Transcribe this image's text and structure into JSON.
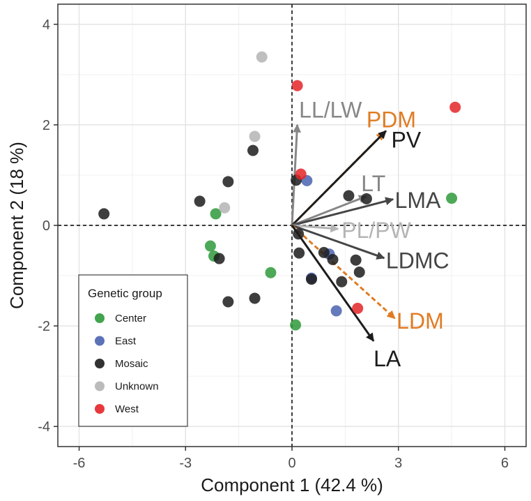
{
  "chart_data": {
    "type": "scatter",
    "xlabel": "Component 1 (42.4 %)",
    "ylabel": "Component 2 (18 %)",
    "xlim": [
      -6.6,
      6.6
    ],
    "ylim": [
      -4.4,
      4.4
    ],
    "xticks": [
      -6,
      -3,
      0,
      3,
      6
    ],
    "yticks": [
      -4,
      -2,
      0,
      2,
      4
    ],
    "xtick_labels": [
      "-6",
      "-3",
      "0",
      "3",
      "6"
    ],
    "ytick_labels": [
      "-4",
      "-2",
      "0",
      "2",
      "4"
    ],
    "grid": true,
    "legend": {
      "title": "Genetic group",
      "position": "bottom-left",
      "entries": [
        {
          "name": "Center",
          "color": "#2e9a3a"
        },
        {
          "name": "East",
          "color": "#4a63b0"
        },
        {
          "name": "Mosaic",
          "color": "#1c1c1c"
        },
        {
          "name": "Unknown",
          "color": "#b4b4b4"
        },
        {
          "name": "West",
          "color": "#e42428"
        }
      ]
    },
    "series": [
      {
        "name": "Center",
        "color": "#2e9a3a",
        "points": [
          {
            "x": -2.15,
            "y": 0.23
          },
          {
            "x": -2.3,
            "y": -0.41
          },
          {
            "x": -2.2,
            "y": -0.61
          },
          {
            "x": -0.6,
            "y": -0.94
          },
          {
            "x": 0.1,
            "y": -1.98
          },
          {
            "x": 4.5,
            "y": 0.54
          }
        ]
      },
      {
        "name": "East",
        "color": "#4a63b0",
        "points": [
          {
            "x": 0.42,
            "y": 0.89
          },
          {
            "x": 0.55,
            "y": -1.05
          },
          {
            "x": 1.05,
            "y": -0.57
          },
          {
            "x": 1.25,
            "y": -1.7
          }
        ]
      },
      {
        "name": "Mosaic",
        "color": "#1c1c1c",
        "points": [
          {
            "x": -5.3,
            "y": 0.23
          },
          {
            "x": -2.6,
            "y": 0.48
          },
          {
            "x": -1.8,
            "y": 0.87
          },
          {
            "x": -1.1,
            "y": 1.49
          },
          {
            "x": -2.05,
            "y": -0.66
          },
          {
            "x": -1.8,
            "y": -1.52
          },
          {
            "x": -1.05,
            "y": -1.45
          },
          {
            "x": 0.12,
            "y": 0.9
          },
          {
            "x": 0.18,
            "y": -0.17
          },
          {
            "x": 0.2,
            "y": -0.55
          },
          {
            "x": 0.55,
            "y": -1.07
          },
          {
            "x": 0.9,
            "y": -0.54
          },
          {
            "x": 1.15,
            "y": -0.68
          },
          {
            "x": 1.4,
            "y": -1.12
          },
          {
            "x": 1.6,
            "y": 0.59
          },
          {
            "x": 1.8,
            "y": -0.69
          },
          {
            "x": 1.9,
            "y": -0.93
          },
          {
            "x": 2.1,
            "y": 0.53
          }
        ]
      },
      {
        "name": "Unknown",
        "color": "#b4b4b4",
        "points": [
          {
            "x": -0.85,
            "y": 3.35
          },
          {
            "x": -1.05,
            "y": 1.77
          },
          {
            "x": -1.9,
            "y": 0.35
          }
        ]
      },
      {
        "name": "West",
        "color": "#e42428",
        "points": [
          {
            "x": 0.15,
            "y": 2.78
          },
          {
            "x": 0.25,
            "y": 1.02
          },
          {
            "x": 4.6,
            "y": 2.35
          },
          {
            "x": 1.85,
            "y": -1.65
          }
        ]
      }
    ],
    "vectors": [
      {
        "label": "LL/LW",
        "x": 0.15,
        "y": 2.0,
        "color": "#878787",
        "dashed": false,
        "lx": 0.2,
        "ly": 2.3
      },
      {
        "label": "PDM",
        "x": 2.6,
        "y": 1.85,
        "color": "#e07b22",
        "dashed": true,
        "lx": 2.1,
        "ly": 2.1
      },
      {
        "label": "PV",
        "x": 2.65,
        "y": 1.88,
        "color": "#1c1c1c",
        "dashed": false,
        "lx": 2.8,
        "ly": 1.7
      },
      {
        "label": "LT",
        "x": 2.1,
        "y": 0.58,
        "color": "#878787",
        "dashed": false,
        "lx": 1.95,
        "ly": 0.83
      },
      {
        "label": "LMA",
        "x": 2.85,
        "y": 0.52,
        "color": "#454545",
        "dashed": false,
        "lx": 2.9,
        "ly": 0.5
      },
      {
        "label": "PL/PW",
        "x": 1.3,
        "y": -0.07,
        "color": "#b4b4b4",
        "dashed": false,
        "lx": 1.4,
        "ly": -0.1
      },
      {
        "label": "LDMC",
        "x": 2.6,
        "y": -0.65,
        "color": "#454545",
        "dashed": false,
        "lx": 2.65,
        "ly": -0.7
      },
      {
        "label": "LDM",
        "x": 2.9,
        "y": -1.85,
        "color": "#e07b22",
        "dashed": true,
        "lx": 2.95,
        "ly": -1.9
      },
      {
        "label": "LA",
        "x": 2.3,
        "y": -2.3,
        "color": "#1c1c1c",
        "dashed": false,
        "lx": 2.3,
        "ly": -2.65
      }
    ]
  }
}
